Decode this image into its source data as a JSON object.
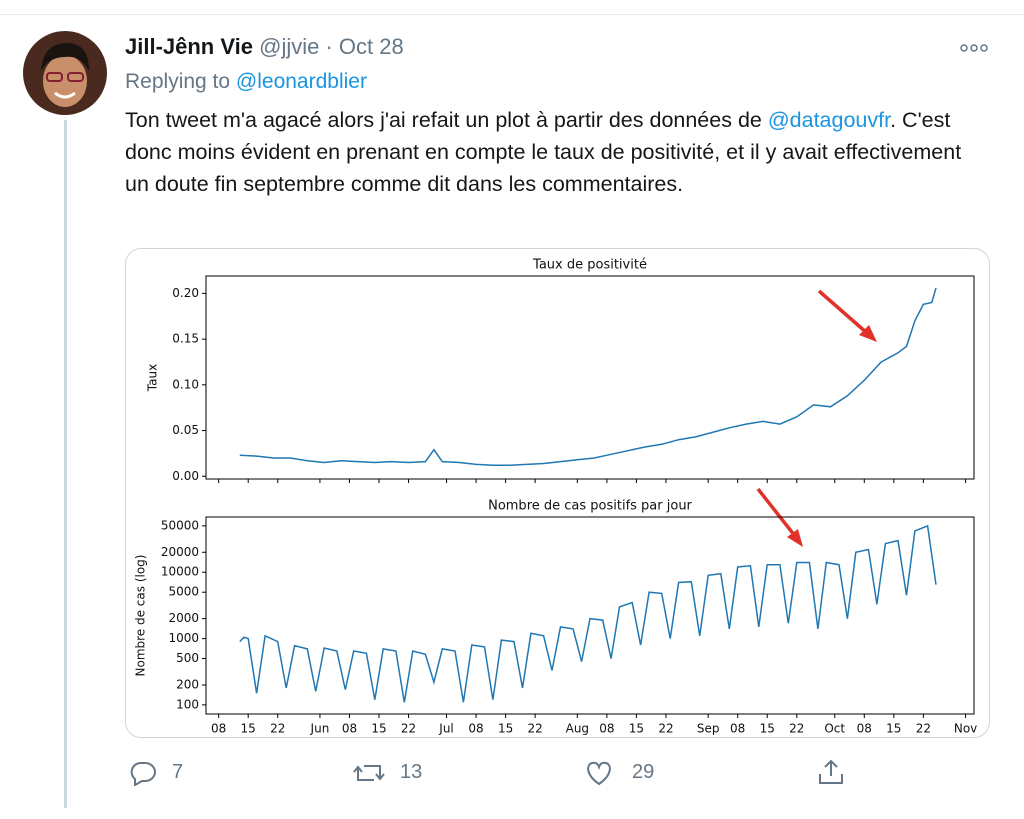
{
  "tweet": {
    "author": "Jill-Jênn Vie",
    "handle": "@jjvie",
    "separator": "·",
    "date": "Oct 28",
    "reply_prefix": "Replying to",
    "reply_to": "@leonardblier",
    "text_before": "Ton tweet m'a agacé alors j'ai refait un plot à partir des données de ",
    "mention": "@datagouvfr",
    "text_after": ". C'est donc moins évident en prenant en compte le taux de positivité, et il y avait effectivement un doute fin septembre comme dit dans les commentaires.",
    "replies": 7,
    "retweets": 13,
    "likes": 29
  },
  "chart_data": [
    {
      "type": "line",
      "title": "Taux de positivité",
      "y_label": "Taux",
      "color": "#1f77b4",
      "x": [
        "05-13",
        "05-17",
        "05-21",
        "05-25",
        "05-29",
        "06-02",
        "06-06",
        "06-10",
        "06-14",
        "06-18",
        "06-22",
        "06-26",
        "06-28",
        "06-30",
        "07-04",
        "07-08",
        "07-12",
        "07-16",
        "07-20",
        "07-24",
        "07-28",
        "08-01",
        "08-05",
        "08-09",
        "08-13",
        "08-17",
        "08-21",
        "08-25",
        "08-29",
        "09-02",
        "09-06",
        "09-10",
        "09-14",
        "09-18",
        "09-22",
        "09-26",
        "09-30",
        "10-04",
        "10-08",
        "10-12",
        "10-16",
        "10-18",
        "10-20",
        "10-22",
        "10-24",
        "10-25"
      ],
      "values": [
        0.023,
        0.022,
        0.02,
        0.02,
        0.017,
        0.015,
        0.017,
        0.016,
        0.015,
        0.016,
        0.015,
        0.016,
        0.029,
        0.016,
        0.015,
        0.013,
        0.012,
        0.012,
        0.013,
        0.014,
        0.016,
        0.018,
        0.02,
        0.024,
        0.028,
        0.032,
        0.035,
        0.04,
        0.043,
        0.048,
        0.053,
        0.057,
        0.06,
        0.057,
        0.065,
        0.078,
        0.076,
        0.088,
        0.105,
        0.125,
        0.135,
        0.142,
        0.17,
        0.188,
        0.19,
        0.206
      ],
      "xlim": [
        "05-05",
        "11-03"
      ],
      "ylim": [
        -0.003,
        0.219
      ],
      "yticks": [
        {
          "value": 0,
          "label": "0.00"
        },
        0.05,
        {
          "value": 0.1,
          "label": "0.10"
        },
        0.15,
        {
          "value": 0.2,
          "label": "0.20"
        }
      ]
    },
    {
      "type": "line",
      "title": "Nombre de cas positifs par jour",
      "y_label": "Nombre de cas (log)",
      "color": "#1f77b4",
      "log_scale": true,
      "x": [
        "05-13",
        "05-14",
        "05-15",
        "05-17",
        "05-19",
        "05-22",
        "05-24",
        "05-26",
        "05-29",
        "05-31",
        "06-02",
        "06-05",
        "06-07",
        "06-09",
        "06-12",
        "06-14",
        "06-16",
        "06-19",
        "06-21",
        "06-23",
        "06-26",
        "06-28",
        "06-30",
        "07-03",
        "07-05",
        "07-07",
        "07-10",
        "07-12",
        "07-14",
        "07-17",
        "07-19",
        "07-21",
        "07-24",
        "07-26",
        "07-28",
        "07-31",
        "08-02",
        "08-04",
        "08-07",
        "08-09",
        "08-11",
        "08-14",
        "08-16",
        "08-18",
        "08-21",
        "08-23",
        "08-25",
        "08-28",
        "08-30",
        "09-01",
        "09-04",
        "09-06",
        "09-08",
        "09-11",
        "09-13",
        "09-15",
        "09-18",
        "09-20",
        "09-22",
        "09-25",
        "09-27",
        "09-29",
        "10-02",
        "10-04",
        "10-06",
        "10-09",
        "10-11",
        "10-13",
        "10-16",
        "10-18",
        "10-20",
        "10-23",
        "10-25"
      ],
      "values": [
        900,
        1050,
        1000,
        150,
        1100,
        900,
        180,
        780,
        700,
        160,
        720,
        650,
        170,
        650,
        600,
        120,
        700,
        650,
        110,
        650,
        580,
        220,
        700,
        650,
        110,
        800,
        750,
        120,
        950,
        900,
        180,
        1200,
        1100,
        330,
        1500,
        1400,
        450,
        2000,
        1900,
        500,
        3000,
        3500,
        800,
        5000,
        4800,
        1000,
        7000,
        7200,
        1100,
        9000,
        9500,
        1400,
        12000,
        12500,
        1500,
        13000,
        13000,
        1700,
        14000,
        14000,
        1400,
        14000,
        13000,
        2000,
        20000,
        22000,
        3300,
        27000,
        30000,
        4500,
        42000,
        50000,
        6500
      ],
      "xlim": [
        "05-05",
        "11-03"
      ],
      "ylim": [
        73,
        68000
      ],
      "yticks": [
        100,
        200,
        500,
        1000,
        2000,
        5000,
        10000,
        20000,
        50000
      ],
      "xticks": [
        {
          "value": "05-08",
          "label": "08"
        },
        {
          "value": "05-15",
          "label": "15"
        },
        {
          "value": "05-22",
          "label": "22"
        },
        {
          "value": "06-01",
          "label": "Jun"
        },
        {
          "value": "06-08",
          "label": "08"
        },
        {
          "value": "06-15",
          "label": "15"
        },
        {
          "value": "06-22",
          "label": "22"
        },
        {
          "value": "07-01",
          "label": "Jul"
        },
        {
          "value": "07-08",
          "label": "08"
        },
        {
          "value": "07-15",
          "label": "15"
        },
        {
          "value": "07-22",
          "label": "22"
        },
        {
          "value": "08-01",
          "label": "Aug"
        },
        {
          "value": "08-08",
          "label": "08"
        },
        {
          "value": "08-15",
          "label": "15"
        },
        {
          "value": "08-22",
          "label": "22"
        },
        {
          "value": "09-01",
          "label": "Sep"
        },
        {
          "value": "09-08",
          "label": "08"
        },
        {
          "value": "09-15",
          "label": "15"
        },
        {
          "value": "09-22",
          "label": "22"
        },
        {
          "value": "10-01",
          "label": "Oct"
        },
        {
          "value": "10-08",
          "label": "08"
        },
        {
          "value": "10-15",
          "label": "15"
        },
        {
          "value": "10-22",
          "label": "22"
        },
        {
          "value": "11-01",
          "label": "Nov"
        }
      ]
    }
  ]
}
